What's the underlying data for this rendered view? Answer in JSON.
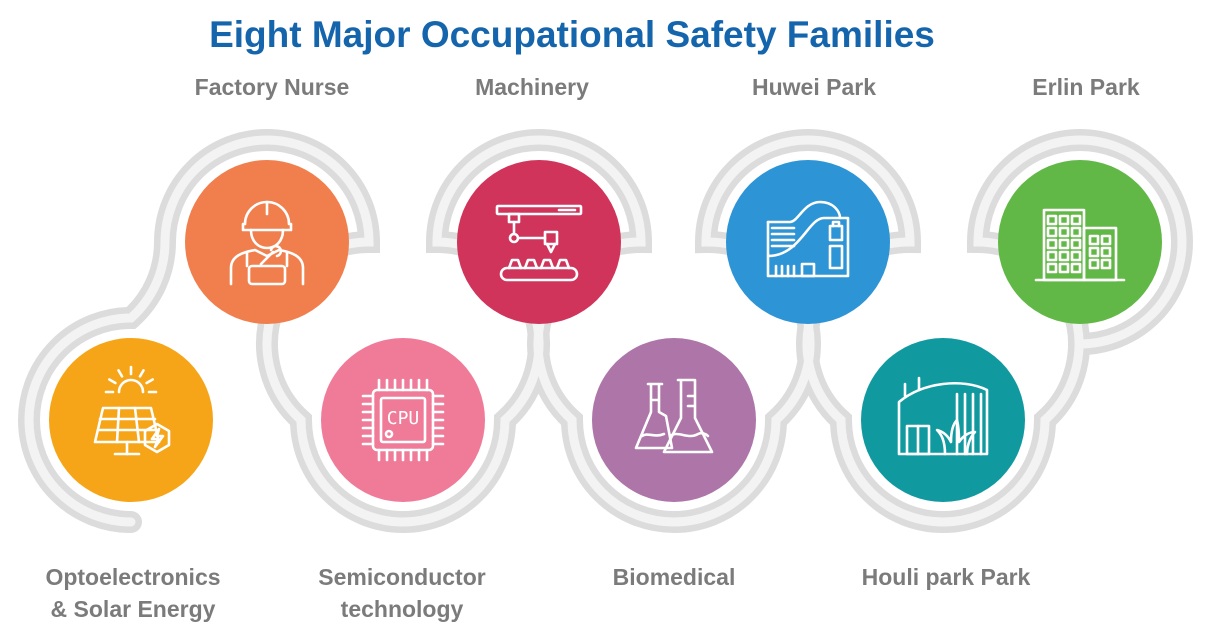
{
  "title": "Eight Major Occupational Safety Families",
  "colors": {
    "title": "#1565ad",
    "label": "#7b7b7b",
    "track": "#dcdcdd",
    "track_inner": "#f3f3f4"
  },
  "families": [
    {
      "label_lines": [
        "Optoelectronics",
        "& Solar Energy"
      ],
      "icon": "solar-panel-icon",
      "color": "#f6a519"
    },
    {
      "label_lines": [
        "Factory Nurse"
      ],
      "icon": "worker-icon",
      "color": "#f07f4d"
    },
    {
      "label_lines": [
        "Semiconductor",
        "technology"
      ],
      "icon": "cpu-chip-icon",
      "color": "#ef7b99"
    },
    {
      "label_lines": [
        "Machinery"
      ],
      "icon": "robotic-arm-icon",
      "color": "#d0345a"
    },
    {
      "label_lines": [
        "Biomedical"
      ],
      "icon": "flasks-icon",
      "color": "#ad75a8"
    },
    {
      "label_lines": [
        "Huwei Park"
      ],
      "icon": "modern-building-icon",
      "color": "#2d94d6"
    },
    {
      "label_lines": [
        "Houli park Park"
      ],
      "icon": "park-building-icon",
      "color": "#1199a0"
    },
    {
      "label_lines": [
        "Erlin Park"
      ],
      "icon": "office-tower-icon",
      "color": "#62b847"
    }
  ]
}
